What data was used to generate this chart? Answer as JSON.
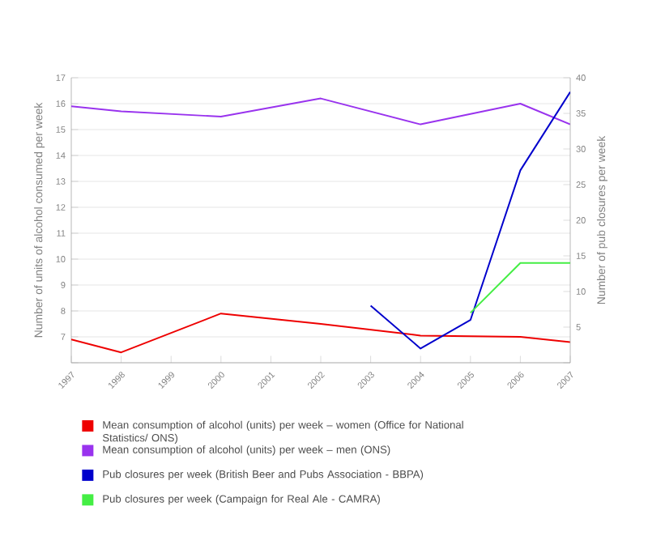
{
  "chart_data": {
    "type": "line",
    "ylabel": "Number of units of alcohol consumed per week",
    "y2label": "Number of pub closures per week",
    "xlim": [
      1997,
      2007
    ],
    "xticks": [
      1997,
      1998,
      1999,
      2000,
      2001,
      2002,
      2003,
      2004,
      2005,
      2006,
      2007
    ],
    "ylim": [
      6,
      17
    ],
    "yticks": [
      {
        "value": 6,
        "label": null
      },
      7,
      8,
      9,
      10,
      11,
      12,
      13,
      14,
      15,
      16,
      17
    ],
    "y2lim": [
      0,
      40
    ],
    "y2ticks": [
      {
        "value": 0,
        "label": null
      },
      5,
      10,
      15,
      20,
      25,
      30,
      35,
      40
    ],
    "grid": "y",
    "legend": "bottom",
    "marker": "none",
    "series": [
      {
        "name": "Mean consumption of alcohol (units) per week – women (Office for National Statistics/ ONS)",
        "color": "#ee0000",
        "x": [
          1997,
          1998,
          2000,
          2002,
          2004,
          2006,
          2007
        ],
        "values": [
          6.9,
          6.4,
          7.9,
          7.5,
          7.05,
          7.0,
          6.8
        ]
      },
      {
        "name": "Mean consumption of alcohol (units) per week – men (ONS)",
        "color": "#9933ee",
        "x": [
          1997,
          1998,
          2000,
          2002,
          2004,
          2006,
          2007
        ],
        "values": [
          15.9,
          15.7,
          15.5,
          16.2,
          15.2,
          16.0,
          15.2
        ]
      },
      {
        "name": "Pub closures per week (British Beer and Pubs Association - BBPA)",
        "color": "#0000cc",
        "axis": "y2",
        "x": [
          2003,
          2004,
          2005,
          2006,
          2007
        ],
        "values": [
          8,
          2,
          6,
          27,
          38
        ]
      },
      {
        "name": "Pub closures per week (Campaign for Real Ale - CAMRA)",
        "color": "#44ee44",
        "axis": "y2",
        "x": [
          2005,
          2006,
          2007
        ],
        "values": [
          7,
          14,
          14
        ]
      }
    ]
  }
}
